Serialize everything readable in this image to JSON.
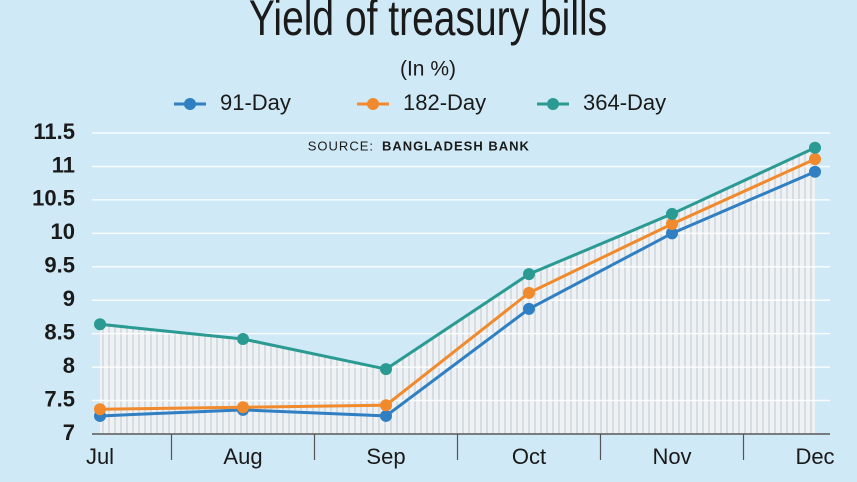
{
  "chart_data": {
    "type": "line",
    "title": "Yield of treasury bills",
    "subtitle": "(In %)",
    "source_label": "SOURCE:",
    "source": "BANGLADESH BANK",
    "categories": [
      "Jul",
      "Aug",
      "Sep",
      "Oct",
      "Nov",
      "Dec"
    ],
    "series": [
      {
        "name": "91-Day",
        "color": "#2f7fc2",
        "values": [
          7.27,
          7.36,
          7.27,
          8.87,
          10.0,
          10.92
        ]
      },
      {
        "name": "182-Day",
        "color": "#f08a2c",
        "values": [
          7.37,
          7.4,
          7.43,
          9.11,
          10.14,
          11.11
        ]
      },
      {
        "name": "364-Day",
        "color": "#2a9a92",
        "values": [
          8.64,
          8.42,
          7.97,
          9.39,
          10.29,
          11.28
        ]
      }
    ],
    "ylim": [
      7,
      11.5
    ],
    "yticks": [
      7,
      7.5,
      8,
      8.5,
      9,
      9.5,
      10,
      10.5,
      11,
      11.5
    ],
    "grid": true
  }
}
